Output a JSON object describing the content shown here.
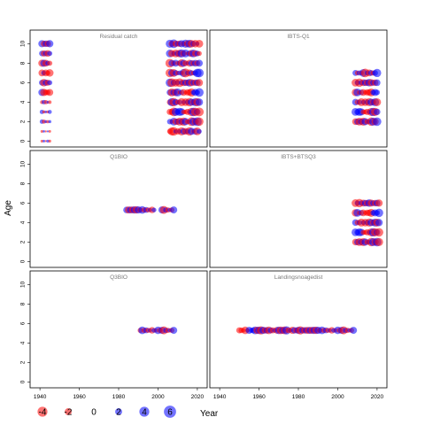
{
  "chart_data": {
    "type": "scatter",
    "subtype": "bubble-residuals",
    "xlabel": "Year",
    "ylabel": "Age",
    "xlim": [
      1935,
      2025
    ],
    "ylim": [
      -0.6,
      11.4
    ],
    "xticks": [
      1940,
      1960,
      1980,
      2000,
      2020
    ],
    "yticks": [
      0,
      2,
      4,
      6,
      8,
      10
    ],
    "colors": {
      "positive": "#0000ff",
      "negative": "#ff0000",
      "alpha": 0.55
    },
    "legend": {
      "placement": "bottom",
      "entries": [
        {
          "label": "-4",
          "value": -4
        },
        {
          "label": "-2",
          "value": -2
        },
        {
          "label": "0",
          "value": 0
        },
        {
          "label": "2",
          "value": 2
        },
        {
          "label": "4",
          "value": 4
        },
        {
          "label": "6",
          "value": 6
        }
      ]
    },
    "panels": [
      {
        "title": "Residual catch",
        "show_yticks": true,
        "show_xticks": false,
        "series": [
          {
            "years": [
              1941,
              1942,
              1943,
              1944,
              1945
            ],
            "ages": [
              0,
              1,
              2,
              3,
              4,
              5,
              6,
              7,
              8,
              9,
              10
            ],
            "pattern": "early"
          },
          {
            "years": [
              2006,
              2007,
              2008,
              2009,
              2010,
              2011,
              2012,
              2013,
              2014,
              2015,
              2016,
              2017,
              2018,
              2019,
              2020,
              2021
            ],
            "ages": [
              1,
              2,
              3,
              4,
              5,
              6,
              7,
              8,
              9,
              10
            ],
            "pattern": "late"
          }
        ]
      },
      {
        "title": "IBTS-Q1",
        "show_yticks": false,
        "show_xticks": false,
        "series": [
          {
            "years": [
              2009,
              2010,
              2011,
              2012,
              2013,
              2014,
              2015,
              2016,
              2017,
              2018,
              2019,
              2020
            ],
            "ages": [
              2,
              3,
              4,
              5,
              6,
              7
            ],
            "pattern": "survey"
          }
        ]
      },
      {
        "title": "Q1BIO",
        "show_yticks": true,
        "show_xticks": false,
        "series": [
          {
            "years": [
              1984,
              1985,
              1986,
              1987,
              1988,
              1989,
              1990,
              1991,
              1992,
              1993,
              1994,
              1995,
              1996,
              1997,
              1998,
              2002,
              2003,
              2004,
              2005,
              2006,
              2007,
              2008
            ],
            "ages": [
              5.3
            ],
            "pattern": "line"
          }
        ]
      },
      {
        "title": "IBTS+BTSQ3",
        "show_yticks": false,
        "show_xticks": false,
        "series": [
          {
            "years": [
              2009,
              2010,
              2011,
              2012,
              2013,
              2014,
              2015,
              2016,
              2017,
              2018,
              2019,
              2020,
              2021
            ],
            "ages": [
              2,
              3,
              4,
              5,
              6
            ],
            "pattern": "survey"
          }
        ]
      },
      {
        "title": "Q3BIO",
        "show_yticks": true,
        "show_xticks": true,
        "series": [
          {
            "years": [
              1991,
              1992,
              1993,
              1994,
              1995,
              1996,
              1997,
              1998,
              1999,
              2000,
              2001,
              2002,
              2003,
              2004,
              2005,
              2006,
              2007,
              2008
            ],
            "ages": [
              5.3
            ],
            "pattern": "line"
          }
        ]
      },
      {
        "title": "Landingsnoagedist",
        "show_yticks": false,
        "show_xticks": true,
        "series": [
          {
            "years": [
              1950,
              1951,
              1952,
              1953,
              1954,
              1955,
              1956,
              1957,
              1958,
              1959,
              1960,
              1961,
              1962,
              1963,
              1964,
              1965,
              1966,
              1967,
              1968,
              1969,
              1970,
              1971,
              1972,
              1973,
              1974,
              1975,
              1976,
              1977,
              1978,
              1979,
              1980,
              1981,
              1982,
              1983,
              1984,
              1985,
              1986,
              1987,
              1988,
              1989,
              1990,
              1991,
              1992,
              1993,
              1994,
              1995,
              1996,
              1997,
              1998,
              1999,
              2000,
              2001,
              2002,
              2003,
              2004,
              2005,
              2006,
              2007,
              2008
            ],
            "ages": [
              5.3
            ],
            "pattern": "line"
          }
        ]
      }
    ]
  }
}
